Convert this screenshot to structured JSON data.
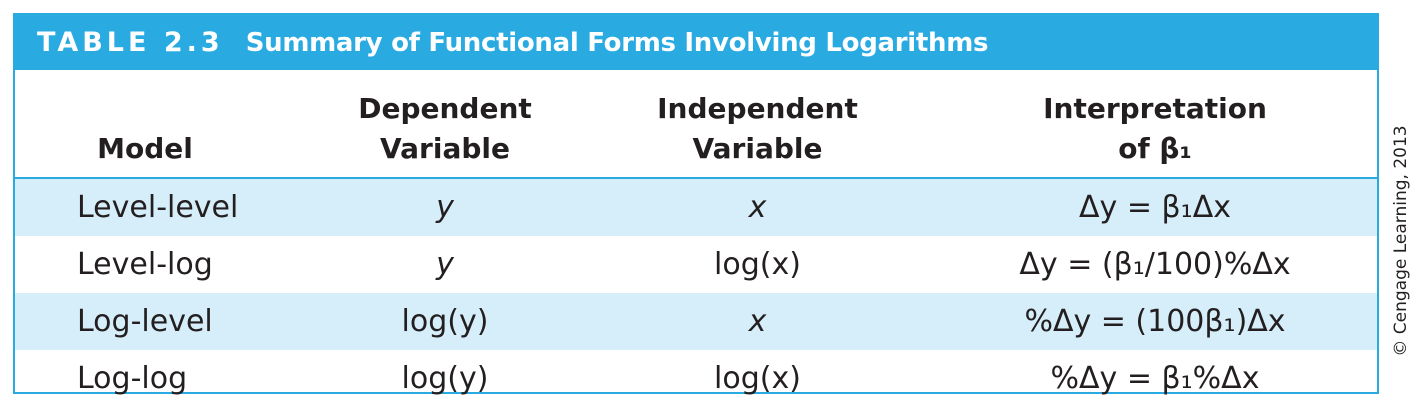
{
  "table": {
    "label": "TABLE 2.3",
    "title": "Summary of Functional Forms Involving Logarithms",
    "headers": {
      "model": "Model",
      "dependent": [
        "Dependent",
        "Variable"
      ],
      "independent": [
        "Independent",
        "Variable"
      ],
      "interpretation": [
        "Interpretation",
        "of β₁"
      ]
    },
    "rows": [
      {
        "model": "Level-level",
        "dependent": "y",
        "independent": "x",
        "interpretation": "Δy = β₁Δx"
      },
      {
        "model": "Level-log",
        "dependent": "y",
        "independent": "log(x)",
        "interpretation": "Δy = (β₁/100)%Δx"
      },
      {
        "model": "Log-level",
        "dependent": "log(y)",
        "independent": "x",
        "interpretation": "%Δy = (100β₁)Δx"
      },
      {
        "model": "Log-log",
        "dependent": "log(y)",
        "independent": "log(x)",
        "interpretation": "%Δy = β₁%Δx"
      }
    ]
  },
  "copyright": "© Cengage Learning, 2013",
  "colors": {
    "accent": "#29abe2",
    "row_shade": "#d6eef9",
    "text": "#231f20"
  }
}
